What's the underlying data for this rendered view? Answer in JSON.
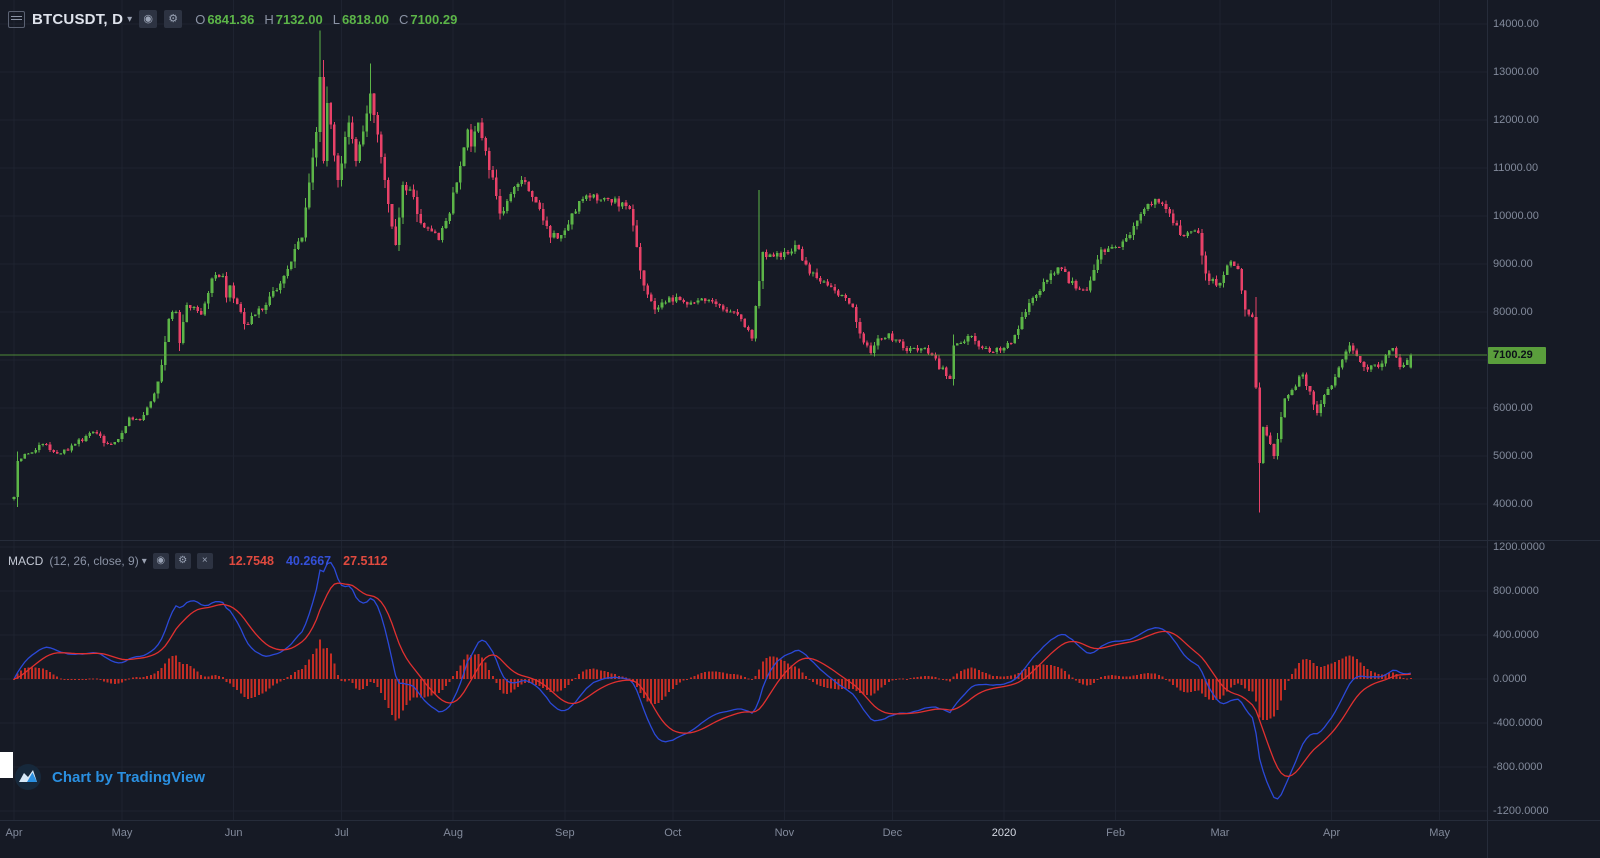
{
  "header": {
    "symbol": "BTCUSDT, D",
    "dropdown_icon": "▾",
    "ohlc": [
      {
        "label": "O",
        "value": "6841.36"
      },
      {
        "label": "H",
        "value": "7132.00"
      },
      {
        "label": "L",
        "value": "6818.00"
      },
      {
        "label": "C",
        "value": "7100.29"
      }
    ]
  },
  "price_axis": {
    "labels": [
      {
        "text": "14000.00",
        "price": 14000
      },
      {
        "text": "13000.00",
        "price": 13000
      },
      {
        "text": "12000.00",
        "price": 12000
      },
      {
        "text": "11000.00",
        "price": 11000
      },
      {
        "text": "10000.00",
        "price": 10000
      },
      {
        "text": "9000.00",
        "price": 9000
      },
      {
        "text": "8000.00",
        "price": 8000
      },
      {
        "text": "6000.00",
        "price": 6000
      },
      {
        "text": "5000.00",
        "price": 5000
      },
      {
        "text": "4000.00",
        "price": 4000
      }
    ],
    "last_price": {
      "text": "7100.29",
      "price": 7100.29
    }
  },
  "macd_pane": {
    "title": "MACD",
    "params": "(12, 26, close, 9)",
    "dropdown_icon": "▾",
    "values": [
      {
        "text": "12.7548",
        "color": "#e04a3f"
      },
      {
        "text": "40.2667",
        "color": "#3450d8"
      },
      {
        "text": "27.5112",
        "color": "#e04a3f"
      }
    ],
    "axis_labels": [
      {
        "text": "1200.0000",
        "value": 1200
      },
      {
        "text": "800.0000",
        "value": 800
      },
      {
        "text": "400.0000",
        "value": 400
      },
      {
        "text": "0.0000",
        "value": 0
      },
      {
        "text": "-400.0000",
        "value": -400
      },
      {
        "text": "-800.0000",
        "value": -800
      },
      {
        "text": "-1200.0000",
        "value": -1200
      }
    ]
  },
  "time_axis": {
    "labels": [
      {
        "text": "Apr",
        "day": 0,
        "highlight": false
      },
      {
        "text": "May",
        "day": 30,
        "highlight": false
      },
      {
        "text": "Jun",
        "day": 61,
        "highlight": false
      },
      {
        "text": "Jul",
        "day": 91,
        "highlight": false
      },
      {
        "text": "Aug",
        "day": 122,
        "highlight": false
      },
      {
        "text": "Sep",
        "day": 153,
        "highlight": false
      },
      {
        "text": "Oct",
        "day": 183,
        "highlight": false
      },
      {
        "text": "Nov",
        "day": 214,
        "highlight": false
      },
      {
        "text": "Dec",
        "day": 244,
        "highlight": false
      },
      {
        "text": "2020",
        "day": 275,
        "highlight": true
      },
      {
        "text": "Feb",
        "day": 306,
        "highlight": false
      },
      {
        "text": "Mar",
        "day": 335,
        "highlight": false
      },
      {
        "text": "Apr",
        "day": 366,
        "highlight": false
      },
      {
        "text": "May",
        "day": 396,
        "highlight": false
      }
    ]
  },
  "footer": {
    "attribution": "Chart by TradingView"
  },
  "colors": {
    "background": "#161a25",
    "grid": "#1e2330",
    "up": "#5cb548",
    "down": "#e84168",
    "price_line": "#5a9e3c",
    "price_tag_bg": "#5a9e3c",
    "macd_line": "#2b49d8",
    "signal_line": "#e03030",
    "histogram": "#d93025",
    "accent_blue": "#2a8fe0"
  },
  "chart_data": {
    "type": "candlestick",
    "symbol": "BTCUSDT",
    "interval": "D",
    "title": "BTCUSDT, D with MACD (12, 26, close, 9)",
    "x_range": [
      "Apr 2019",
      "May 2020"
    ],
    "ylim": [
      3600,
      14400
    ],
    "price_gridlines": [
      4000,
      5000,
      6000,
      7000,
      8000,
      9000,
      10000,
      11000,
      12000,
      13000,
      14000
    ],
    "last_candle": {
      "open": 6841.36,
      "high": 7132.0,
      "low": 6818.0,
      "close": 7100.29
    },
    "anchors": [
      [
        0,
        4150
      ],
      [
        1,
        4900
      ],
      [
        8,
        5250
      ],
      [
        13,
        5050
      ],
      [
        17,
        5250
      ],
      [
        22,
        5500
      ],
      [
        26,
        5250
      ],
      [
        29,
        5350
      ],
      [
        32,
        5800
      ],
      [
        35,
        5750
      ],
      [
        39,
        6300
      ],
      [
        41,
        6900
      ],
      [
        43,
        7850
      ],
      [
        45,
        8000
      ],
      [
        46,
        7350
      ],
      [
        48,
        8150
      ],
      [
        52,
        7950
      ],
      [
        55,
        8700
      ],
      [
        58,
        8750
      ],
      [
        59,
        8300
      ],
      [
        60,
        8550
      ],
      [
        64,
        7750
      ],
      [
        67,
        7950
      ],
      [
        70,
        8150
      ],
      [
        76,
        8900
      ],
      [
        80,
        9550
      ],
      [
        82,
        10700
      ],
      [
        84,
        11750
      ],
      [
        85,
        12900
      ],
      [
        86,
        11150
      ],
      [
        87,
        12350
      ],
      [
        90,
        10750
      ],
      [
        93,
        11950
      ],
      [
        95,
        11150
      ],
      [
        99,
        12550
      ],
      [
        100,
        12100
      ],
      [
        104,
        10250
      ],
      [
        106,
        9400
      ],
      [
        108,
        10650
      ],
      [
        110,
        10550
      ],
      [
        113,
        9850
      ],
      [
        118,
        9500
      ],
      [
        121,
        10050
      ],
      [
        126,
        11800
      ],
      [
        127,
        11450
      ],
      [
        129,
        11950
      ],
      [
        131,
        11350
      ],
      [
        135,
        10050
      ],
      [
        141,
        10750
      ],
      [
        146,
        10150
      ],
      [
        149,
        9550
      ],
      [
        152,
        9600
      ],
      [
        158,
        10350
      ],
      [
        165,
        10350
      ],
      [
        171,
        10150
      ],
      [
        175,
        8550
      ],
      [
        178,
        8050
      ],
      [
        182,
        8300
      ],
      [
        189,
        8200
      ],
      [
        193,
        8250
      ],
      [
        201,
        7950
      ],
      [
        205,
        7450
      ],
      [
        207,
        8650
      ],
      [
        208,
        9250
      ],
      [
        210,
        9200
      ],
      [
        213,
        9150
      ],
      [
        217,
        9400
      ],
      [
        221,
        8800
      ],
      [
        228,
        8450
      ],
      [
        233,
        8100
      ],
      [
        235,
        7550
      ],
      [
        238,
        7150
      ],
      [
        240,
        7450
      ],
      [
        243,
        7550
      ],
      [
        247,
        7250
      ],
      [
        253,
        7250
      ],
      [
        260,
        6600
      ],
      [
        261,
        7300
      ],
      [
        265,
        7500
      ],
      [
        270,
        7250
      ],
      [
        274,
        7200
      ],
      [
        277,
        7350
      ],
      [
        281,
        8000
      ],
      [
        288,
        8800
      ],
      [
        291,
        8900
      ],
      [
        293,
        8600
      ],
      [
        298,
        8450
      ],
      [
        302,
        9300
      ],
      [
        305,
        9350
      ],
      [
        310,
        9600
      ],
      [
        314,
        10150
      ],
      [
        317,
        10350
      ],
      [
        319,
        10250
      ],
      [
        324,
        9600
      ],
      [
        329,
        9650
      ],
      [
        331,
        8800
      ],
      [
        334,
        8550
      ],
      [
        338,
        9050
      ],
      [
        340,
        8900
      ],
      [
        342,
        8050
      ],
      [
        344,
        7900
      ],
      [
        346,
        4850
      ],
      [
        347,
        5600
      ],
      [
        350,
        5000
      ],
      [
        353,
        6200
      ],
      [
        358,
        6700
      ],
      [
        362,
        5900
      ],
      [
        365,
        6400
      ],
      [
        367,
        6650
      ],
      [
        371,
        7300
      ],
      [
        372,
        7200
      ],
      [
        375,
        6850
      ],
      [
        379,
        6850
      ],
      [
        381,
        7100
      ],
      [
        383,
        7250
      ],
      [
        385,
        6850
      ],
      [
        388,
        7100
      ]
    ],
    "wick_overrides": [
      {
        "day": 85,
        "high": 13868
      },
      {
        "day": 99,
        "high": 13180
      },
      {
        "day": 207,
        "high": 10540
      },
      {
        "day": 346,
        "low": 3820
      }
    ],
    "macd": {
      "type": "macd",
      "params": [
        12,
        26,
        9
      ],
      "source": "close",
      "ylim": [
        -1300,
        1300
      ],
      "axis_gridlines": [
        -1200,
        -800,
        -400,
        0,
        400,
        800,
        1200
      ],
      "displayed_values": {
        "histogram": 12.7548,
        "macd": 40.2667,
        "signal": 27.5112
      }
    }
  }
}
